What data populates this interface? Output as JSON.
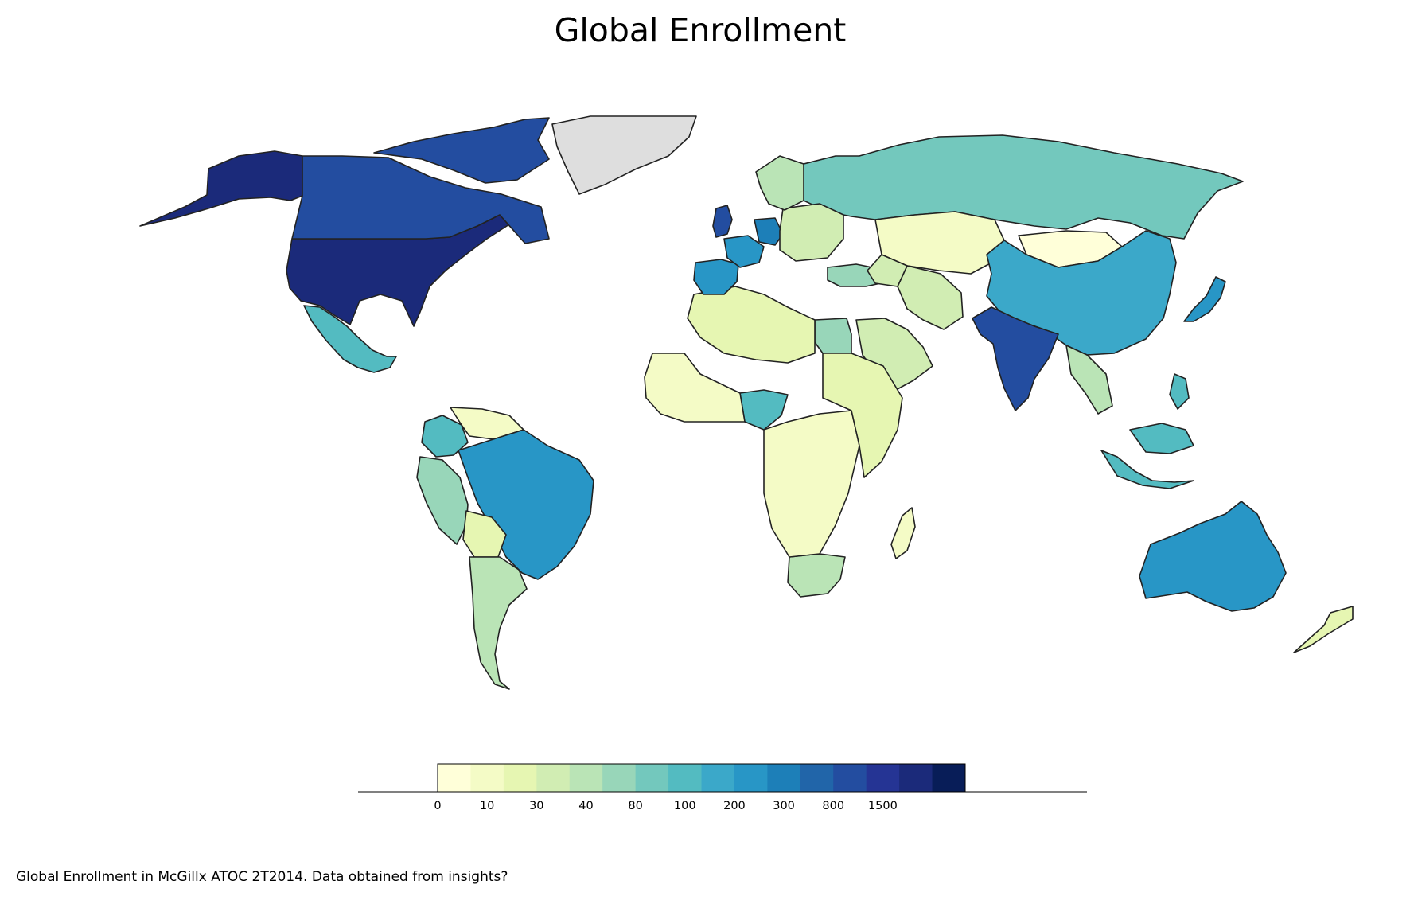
{
  "title": "Global Enrollment",
  "caption": "Global Enrollment in McGillx ATOC 2T2014. Data obtained from insights?",
  "colorbar": {
    "bins": [
      "#ffffd9",
      "#f4fbc6",
      "#e6f6b2",
      "#d1edb3",
      "#bae4b6",
      "#98d6b9",
      "#73c8bd",
      "#53bbc1",
      "#3ba8c9",
      "#2896c6",
      "#1d7fb8",
      "#2165a9",
      "#234da0",
      "#253494",
      "#1b2a7a",
      "#081d58"
    ],
    "tick_labels": [
      "0",
      "10",
      "30",
      "40",
      "80",
      "100",
      "200",
      "300",
      "800",
      "1500"
    ],
    "no_data_color": "#dedede"
  },
  "chart_data": {
    "type": "choropleth",
    "title": "Global Enrollment",
    "legend_levels": [
      "0",
      "10",
      "30",
      "40",
      "80",
      "100",
      "200",
      "300",
      "800",
      "1500"
    ],
    "regions": [
      {
        "name": "United States",
        "bin": 14
      },
      {
        "name": "Alaska",
        "bin": 14
      },
      {
        "name": "Canada",
        "bin": 12
      },
      {
        "name": "Canadian Arctic",
        "bin": 12
      },
      {
        "name": "Greenland",
        "bin": -1
      },
      {
        "name": "Mexico",
        "bin": 7
      },
      {
        "name": "Brazil",
        "bin": 9
      },
      {
        "name": "Argentina",
        "bin": 4
      },
      {
        "name": "Colombia",
        "bin": 7
      },
      {
        "name": "Peru",
        "bin": 5
      },
      {
        "name": "Venezuela",
        "bin": 1
      },
      {
        "name": "Bolivia",
        "bin": 2
      },
      {
        "name": "Russia",
        "bin": 6
      },
      {
        "name": "Kazakhstan",
        "bin": 1
      },
      {
        "name": "Mongolia",
        "bin": 0
      },
      {
        "name": "China",
        "bin": 8
      },
      {
        "name": "India",
        "bin": 12
      },
      {
        "name": "Japan",
        "bin": 9
      },
      {
        "name": "Australia",
        "bin": 9
      },
      {
        "name": "New Zealand",
        "bin": 2
      },
      {
        "name": "Indonesia",
        "bin": 7
      },
      {
        "name": "Egypt",
        "bin": 5
      },
      {
        "name": "Nigeria",
        "bin": 7
      },
      {
        "name": "South Africa",
        "bin": 4
      },
      {
        "name": "Madagascar",
        "bin": 1
      },
      {
        "name": "United Kingdom",
        "bin": 12
      },
      {
        "name": "Spain",
        "bin": 9
      },
      {
        "name": "France",
        "bin": 9
      },
      {
        "name": "Germany",
        "bin": 10
      },
      {
        "name": "Iran",
        "bin": 3
      },
      {
        "name": "Saudi Arabia",
        "bin": 3
      },
      {
        "name": "Turkey",
        "bin": 5
      }
    ]
  }
}
